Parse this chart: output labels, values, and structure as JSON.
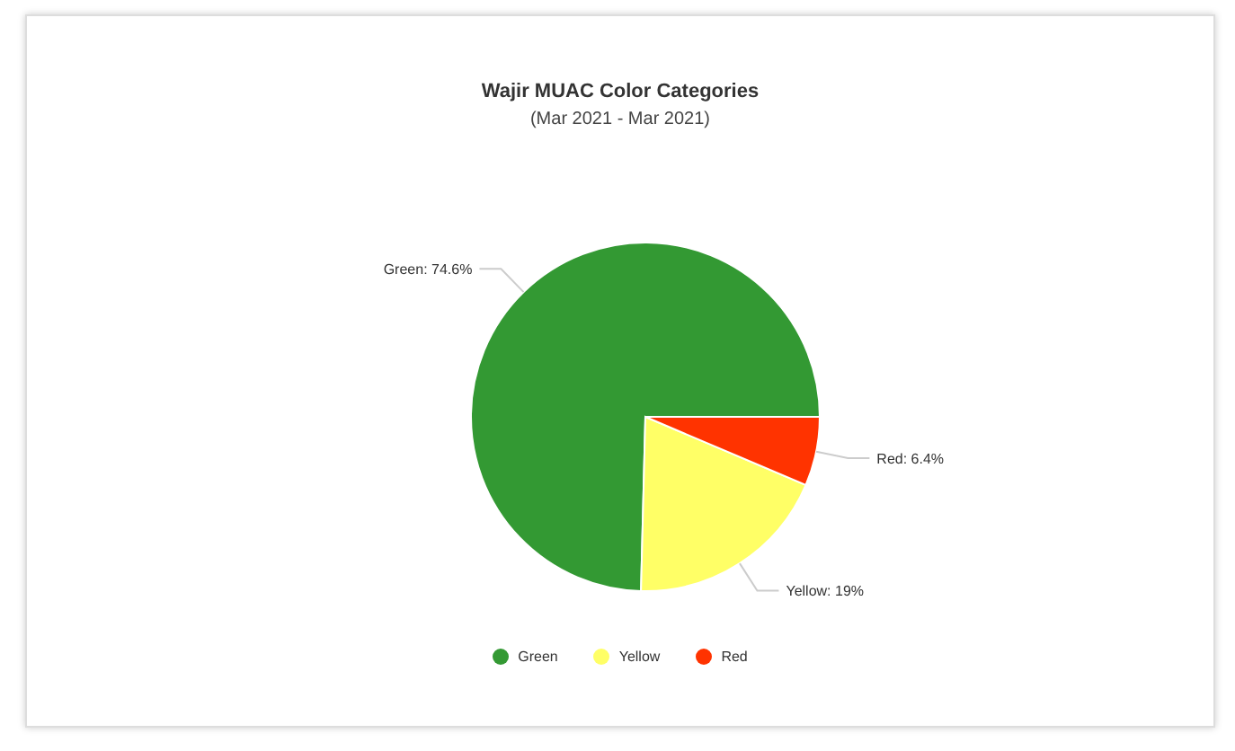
{
  "chart_data": {
    "type": "pie",
    "title": "Wajir MUAC Color Categories",
    "subtitle": "(Mar 2021 - Mar 2021)",
    "categories": [
      "Green",
      "Yellow",
      "Red"
    ],
    "values": [
      74.6,
      19,
      6.4
    ],
    "colors": [
      "#339933",
      "#ffff66",
      "#ff3300"
    ],
    "value_labels": [
      "Green: 74.6%",
      "Yellow: 19%",
      "Red: 6.4%"
    ],
    "legend": "bottom"
  }
}
